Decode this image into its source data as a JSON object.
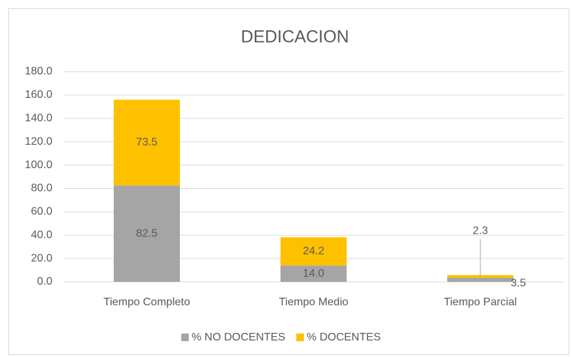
{
  "chart_data": {
    "type": "stacked_bar",
    "title": "DEDICACION",
    "categories": [
      "Tiempo Completo",
      "Tiempo Medio",
      "Tiempo Parcial"
    ],
    "series": [
      {
        "name": "% NO DOCENTES",
        "color": "#a5a5a5",
        "values": [
          82.5,
          14.0,
          3.5
        ],
        "value_labels": [
          "82.5",
          "14.0",
          "3.5"
        ]
      },
      {
        "name": "% DOCENTES",
        "color": "#ffc000",
        "values": [
          73.5,
          24.2,
          2.3
        ],
        "value_labels": [
          "73.5",
          "24.2",
          "2.3"
        ]
      }
    ],
    "ylim": [
      0,
      180
    ],
    "yticks": [
      {
        "value": 0,
        "label": "0.0"
      },
      {
        "value": 20,
        "label": "20.0"
      },
      {
        "value": 40,
        "label": "40.0"
      },
      {
        "value": 60,
        "label": "60.0"
      },
      {
        "value": 80,
        "label": "80.0"
      },
      {
        "value": 100,
        "label": "100.0"
      },
      {
        "value": 120,
        "label": "120.0"
      },
      {
        "value": 140,
        "label": "140.0"
      },
      {
        "value": 160,
        "label": "160.0"
      },
      {
        "value": 180,
        "label": "180.0"
      }
    ],
    "grid": true,
    "legend": "bottom"
  }
}
